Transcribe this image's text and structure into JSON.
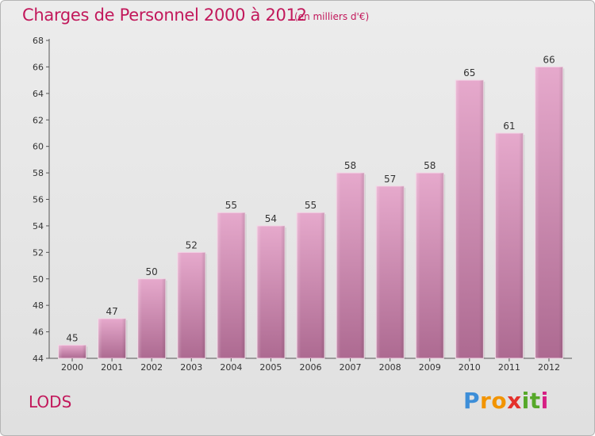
{
  "header": {
    "title": "Charges de Personnel 2000 à 2012",
    "subtitle": "(en milliers d'€)"
  },
  "footer": {
    "commune": "LODS",
    "logo_text": "Proxiti",
    "logo_letters": [
      {
        "ch": "P",
        "color": "#3d8ed8"
      },
      {
        "ch": "r",
        "color": "#f29400"
      },
      {
        "ch": "o",
        "color": "#f29400"
      },
      {
        "ch": "x",
        "color": "#e4312b"
      },
      {
        "ch": "i",
        "color": "#56a829"
      },
      {
        "ch": "t",
        "color": "#56a829"
      },
      {
        "ch": "i",
        "color": "#d61f83"
      }
    ]
  },
  "chart_data": {
    "type": "bar",
    "title": "Charges de Personnel 2000 à 2012",
    "subtitle": "(en milliers d'€)",
    "categories": [
      "2000",
      "2001",
      "2002",
      "2003",
      "2004",
      "2005",
      "2006",
      "2007",
      "2008",
      "2009",
      "2010",
      "2011",
      "2012"
    ],
    "values": [
      45,
      47,
      50,
      52,
      55,
      54,
      55,
      58,
      57,
      58,
      65,
      61,
      66
    ],
    "ylim": [
      44,
      68
    ],
    "yticks": [
      44,
      46,
      48,
      50,
      52,
      54,
      56,
      58,
      60,
      62,
      64,
      66,
      68
    ],
    "grid": false,
    "data_labels": true,
    "bar_color": "#c97aa6"
  }
}
